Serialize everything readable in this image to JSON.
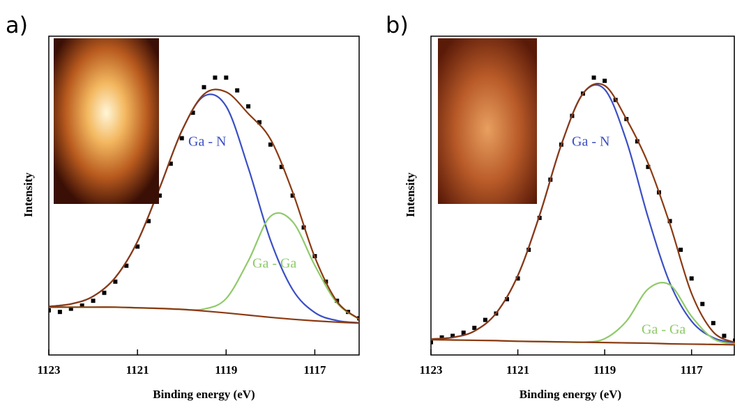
{
  "chart_data": [
    {
      "type": "line",
      "panel_label": "a)",
      "xlabel": "Binding energy (eV)",
      "ylabel": "Intensity",
      "xlim": [
        1123,
        1116
      ],
      "xticks": [
        1123,
        1121,
        1119,
        1117
      ],
      "ylim": [
        0,
        100
      ],
      "x": [
        1123,
        1122.5,
        1122,
        1121.5,
        1121,
        1120.5,
        1120,
        1119.5,
        1119,
        1118.5,
        1118,
        1117.5,
        1117,
        1116.5,
        1116
      ],
      "series": [
        {
          "name": "Ga - N",
          "color": "#3b4fc4",
          "values": [
            15.2,
            16,
            18.4,
            24.3,
            35.6,
            52.4,
            70.3,
            81.2,
            78,
            58.7,
            36,
            20.5,
            13.3,
            10.8,
            10.1
          ]
        },
        {
          "name": "Ga - Ga",
          "color": "#8fca6a",
          "values": [
            15,
            15,
            15,
            15,
            14.8,
            14.6,
            14.3,
            14.4,
            17.7,
            29.5,
            43.5,
            41.8,
            28.1,
            16.3,
            11.2
          ]
        },
        {
          "color": "#8b3a12",
          "values": [
            15.2,
            16,
            18.4,
            24.3,
            35.6,
            52.4,
            70.3,
            81.8,
            82.5,
            75.7,
            67.7,
            51.1,
            30.7,
            16.8,
            11.3
          ]
        },
        {
          "color": "#8b3a12",
          "values": [
            15,
            15,
            15,
            15,
            14.8,
            14.6,
            14.3,
            13.8,
            13.2,
            12.5,
            11.8,
            11.2,
            10.7,
            10.3,
            10.0
          ]
        }
      ],
      "points": {
        "color": "#000000",
        "x": [
          1123,
          1122.75,
          1122.5,
          1122.25,
          1122,
          1121.75,
          1121.5,
          1121.25,
          1121,
          1120.75,
          1120.5,
          1120.25,
          1120,
          1119.75,
          1119.5,
          1119.25,
          1119,
          1118.75,
          1118.5,
          1118.25,
          1118,
          1117.75,
          1117.5,
          1117.25,
          1117,
          1116.75,
          1116.5,
          1116.25,
          1116
        ],
        "values": [
          14,
          13.5,
          14.5,
          15.5,
          17,
          19.5,
          23,
          28,
          34,
          42,
          50,
          60,
          68,
          76,
          84,
          87,
          87,
          83,
          78,
          73,
          66,
          59,
          50,
          40,
          31,
          23,
          17,
          13.5,
          11.5
        ]
      }
    },
    {
      "type": "line",
      "panel_label": "b)",
      "xlabel": "Binding energy (eV)",
      "ylabel": "Intensity",
      "xlim": [
        1123,
        1116
      ],
      "xticks": [
        1123,
        1121,
        1119,
        1117
      ],
      "ylim": [
        0,
        100
      ],
      "x": [
        1123,
        1122.5,
        1122,
        1121.5,
        1121,
        1120.5,
        1120,
        1119.5,
        1119,
        1118.5,
        1118,
        1117.5,
        1117,
        1116.5,
        1116
      ],
      "series": [
        {
          "name": "Ga - N",
          "color": "#3b4fc4",
          "values": [
            5.0,
            5.5,
            7.5,
            13.1,
            24.9,
            43.8,
            65.9,
            82,
            83.3,
            67.2,
            43.1,
            22.6,
            10.6,
            5.4,
            3.7
          ]
        },
        {
          "name": "Ga - Ga",
          "color": "#8fca6a",
          "values": [
            4.8,
            4.7,
            4.6,
            4.5,
            4.3,
            4.2,
            4.1,
            4.0,
            5.1,
            10.6,
            20.7,
            22,
            12.1,
            5.1,
            3.4
          ]
        },
        {
          "color": "#8b3a12",
          "values": [
            5.0,
            5.5,
            7.5,
            13.1,
            24.9,
            43.8,
            65.9,
            82,
            84.5,
            74,
            60.1,
            41.1,
            19.3,
            7.2,
            3.9
          ]
        },
        {
          "color": "#8b3a12",
          "values": [
            4.8,
            4.7,
            4.6,
            4.5,
            4.3,
            4.2,
            4.1,
            4.0,
            3.9,
            3.8,
            3.7,
            3.5,
            3.4,
            3.3,
            3.2
          ]
        }
      ],
      "points": {
        "color": "#000000",
        "x": [
          1123,
          1122.75,
          1122.5,
          1122.25,
          1122,
          1121.75,
          1121.5,
          1121.25,
          1121,
          1120.75,
          1120.5,
          1120.25,
          1120,
          1119.75,
          1119.5,
          1119.25,
          1119,
          1118.75,
          1118.5,
          1118.25,
          1118,
          1117.75,
          1117.5,
          1117.25,
          1117,
          1116.75,
          1116.5,
          1116.25,
          1116
        ],
        "values": [
          4,
          5.5,
          6,
          7,
          8.5,
          11,
          13,
          17.5,
          24,
          33,
          43,
          55,
          66,
          75,
          82,
          87,
          86,
          80,
          74,
          67,
          59,
          51,
          42,
          33,
          24,
          16,
          10,
          6,
          4.5
        ]
      }
    }
  ]
}
